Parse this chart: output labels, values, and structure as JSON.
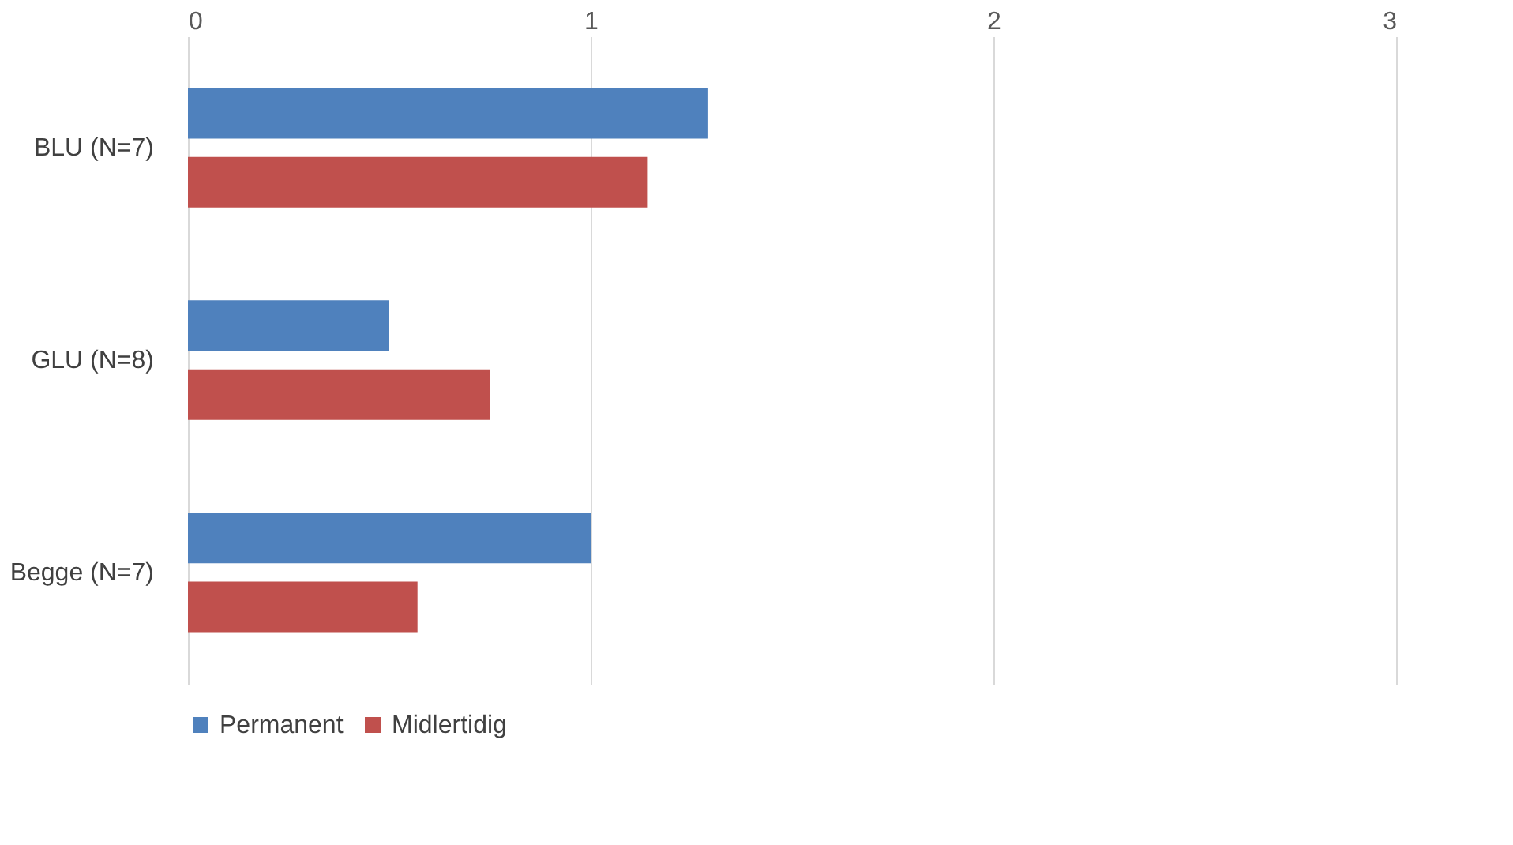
{
  "chart_data": {
    "type": "bar",
    "orientation": "horizontal",
    "categories": [
      "BLU (N=7)",
      "GLU (N=8)",
      "Begge (N=7)"
    ],
    "series": [
      {
        "name": "Permanent",
        "color": "#4f81bd",
        "values": [
          1.29,
          0.5,
          1.0
        ]
      },
      {
        "name": "Midlertidig",
        "color": "#c0504d",
        "values": [
          1.14,
          0.75,
          0.57
        ]
      }
    ],
    "xlim": [
      0,
      3
    ],
    "xticks": [
      0,
      1,
      2,
      3
    ],
    "grid": "x",
    "legend": "bottom"
  }
}
